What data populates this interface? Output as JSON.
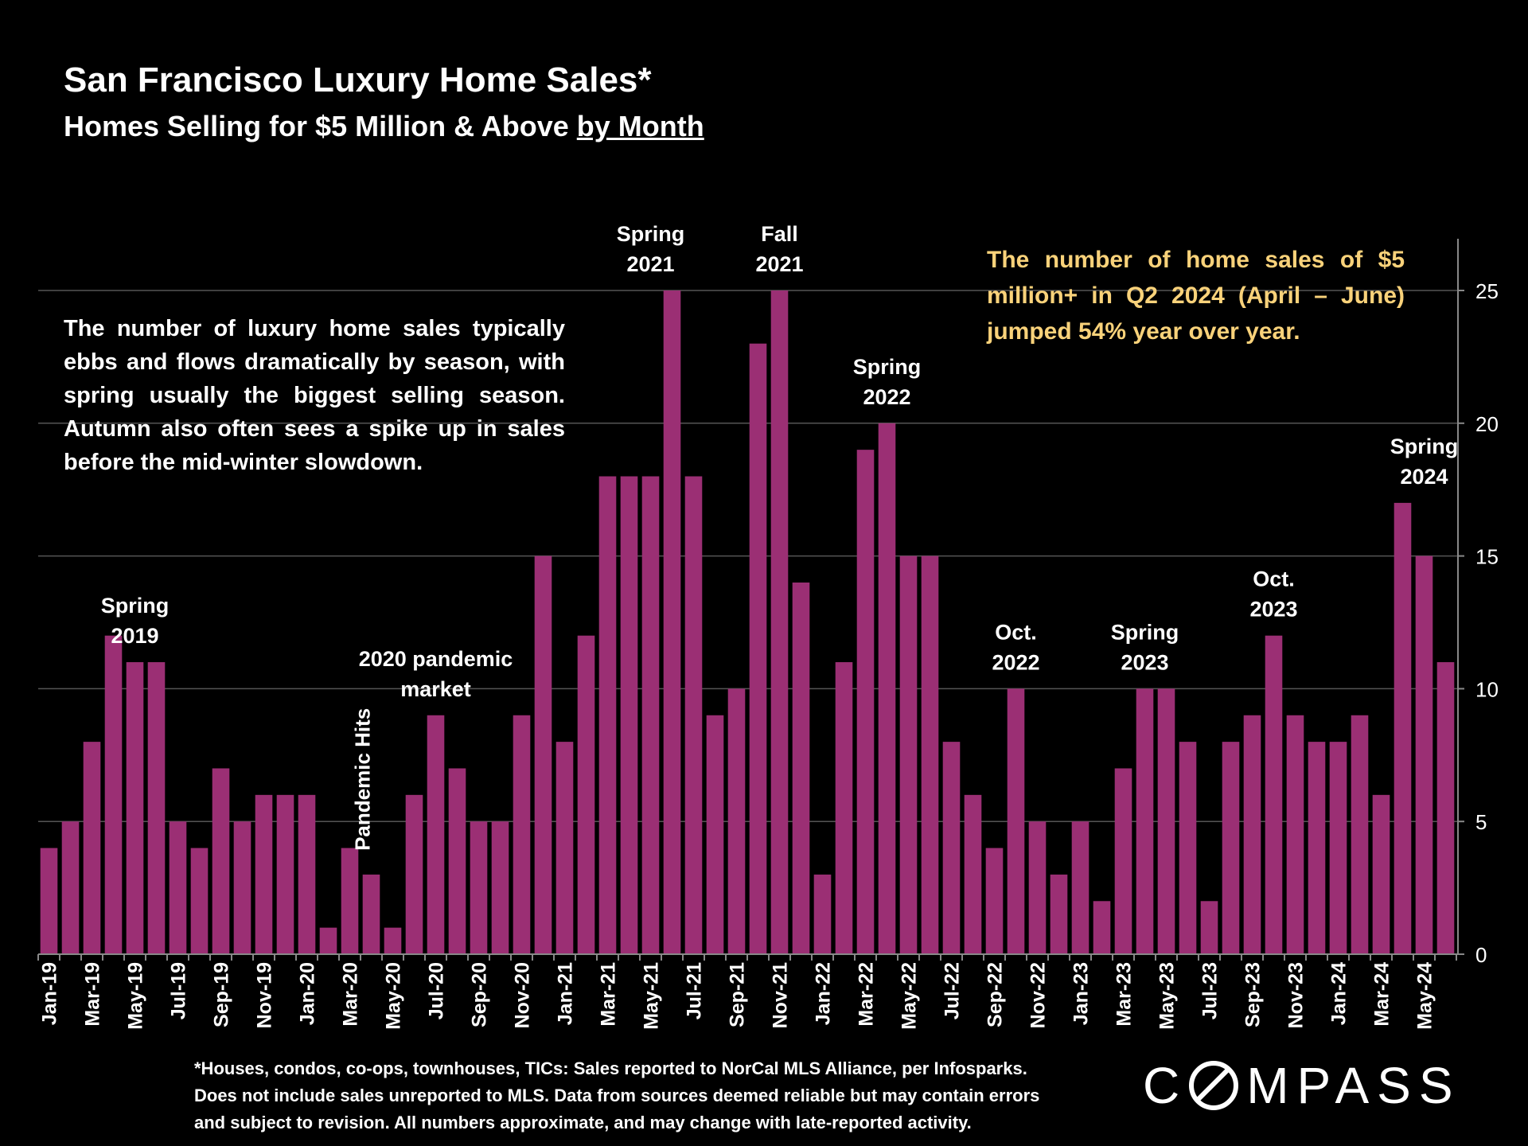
{
  "header": {
    "title": "San Francisco Luxury Home Sales*",
    "subtitle_prefix": "Homes Selling for $5 Million & Above ",
    "subtitle_underlined": "by Month"
  },
  "notes": {
    "left": "The number of luxury home sales typically ebbs and flows dramatically by season, with spring usually the biggest selling season. Autumn also often sees a spike up in sales before the mid-winter slowdown.",
    "right": "The number of home sales of $5 million+ in Q2 2024 (April – June) jumped 54% year over year."
  },
  "footnote": [
    "*Houses, condos, co-ops, townhouses, TICs:  Sales reported to NorCal MLS Alliance, per Infosparks.",
    "Does not include sales unreported to MLS. Data from sources deemed reliable but may contain errors",
    "and subject to revision.  All numbers approximate, and may change with late-reported activity."
  ],
  "brand": {
    "logo_text": "COMPASS"
  },
  "colors": {
    "bar": "#9b2f74",
    "background": "#000000",
    "text": "#ffffff",
    "highlight_text": "#f9d27a",
    "grid": "#555555"
  },
  "chart_data": {
    "type": "bar",
    "title": "San Francisco Luxury Home Sales*",
    "subtitle": "Homes Selling for $5 Million & Above by Month",
    "xlabel": "",
    "ylabel": "",
    "ylim": [
      0,
      25
    ],
    "yticks": [
      0,
      5,
      10,
      15,
      20,
      25
    ],
    "y_axis_side": "right",
    "grid": true,
    "categories": [
      "Jan-19",
      "Feb-19",
      "Mar-19",
      "Apr-19",
      "May-19",
      "Jun-19",
      "Jul-19",
      "Aug-19",
      "Sep-19",
      "Oct-19",
      "Nov-19",
      "Dec-19",
      "Jan-20",
      "Feb-20",
      "Mar-20",
      "Apr-20",
      "May-20",
      "Jun-20",
      "Jul-20",
      "Aug-20",
      "Sep-20",
      "Oct-20",
      "Nov-20",
      "Dec-20",
      "Jan-21",
      "Feb-21",
      "Mar-21",
      "Apr-21",
      "May-21",
      "Jun-21",
      "Jul-21",
      "Aug-21",
      "Sep-21",
      "Oct-21",
      "Nov-21",
      "Dec-21",
      "Jan-22",
      "Feb-22",
      "Mar-22",
      "Apr-22",
      "May-22",
      "Jun-22",
      "Jul-22",
      "Aug-22",
      "Sep-22",
      "Oct-22",
      "Nov-22",
      "Dec-22",
      "Jan-23",
      "Feb-23",
      "Mar-23",
      "Apr-23",
      "May-23",
      "Jun-23",
      "Jul-23",
      "Aug-23",
      "Sep-23",
      "Oct-23",
      "Nov-23",
      "Dec-23",
      "Jan-24",
      "Feb-24",
      "Mar-24",
      "Apr-24",
      "May-24",
      "Jun-24"
    ],
    "tick_labels": {
      "every": 2,
      "labels": [
        "Jan-19",
        "Mar-19",
        "May-19",
        "Jul-19",
        "Sep-19",
        "Nov-19",
        "Jan-20",
        "Mar-20",
        "May-20",
        "Jul-20",
        "Sep-20",
        "Nov-20",
        "Jan-21",
        "Mar-21",
        "May-21",
        "Jul-21",
        "Sep-21",
        "Nov-21",
        "Jan-22",
        "Mar-22",
        "May-22",
        "Jul-22",
        "Sep-22",
        "Nov-22",
        "Jan-23",
        "Mar-23",
        "May-23",
        "Jul-23",
        "Sep-23",
        "Nov-23",
        "Jan-24",
        "Mar-24",
        "May-24"
      ]
    },
    "values": [
      4,
      5,
      8,
      12,
      11,
      11,
      5,
      4,
      7,
      5,
      6,
      6,
      6,
      1,
      4,
      3,
      1,
      6,
      9,
      7,
      5,
      5,
      9,
      15,
      8,
      12,
      18,
      18,
      18,
      25,
      18,
      9,
      10,
      23,
      25,
      14,
      3,
      11,
      19,
      20,
      15,
      15,
      8,
      6,
      4,
      10,
      5,
      3,
      5,
      2,
      7,
      10,
      10,
      8,
      2,
      8,
      9,
      12,
      9,
      8,
      8,
      9,
      6,
      17,
      15,
      11
    ],
    "annotations": [
      {
        "text": [
          "Spring",
          "2019"
        ],
        "anchor_index": 4,
        "value": 11
      },
      {
        "text": [
          "2020 pandemic",
          "market"
        ],
        "anchor_index": 18,
        "value": 9
      },
      {
        "text": [
          "Pandemic Hits"
        ],
        "anchor_index": 15,
        "value": 3,
        "rotated": true
      },
      {
        "text": [
          "Spring",
          "2021"
        ],
        "anchor_index": 28,
        "value": 25
      },
      {
        "text": [
          "Fall",
          "2021"
        ],
        "anchor_index": 34,
        "value": 25
      },
      {
        "text": [
          "Spring",
          "2022"
        ],
        "anchor_index": 39,
        "value": 20
      },
      {
        "text": [
          "Oct.",
          "2022"
        ],
        "anchor_index": 45,
        "value": 10
      },
      {
        "text": [
          "Spring",
          "2023"
        ],
        "anchor_index": 51,
        "value": 10
      },
      {
        "text": [
          "Oct.",
          "2023"
        ],
        "anchor_index": 57,
        "value": 12
      },
      {
        "text": [
          "Spring",
          "2024"
        ],
        "anchor_index": 64,
        "value": 17
      }
    ]
  }
}
